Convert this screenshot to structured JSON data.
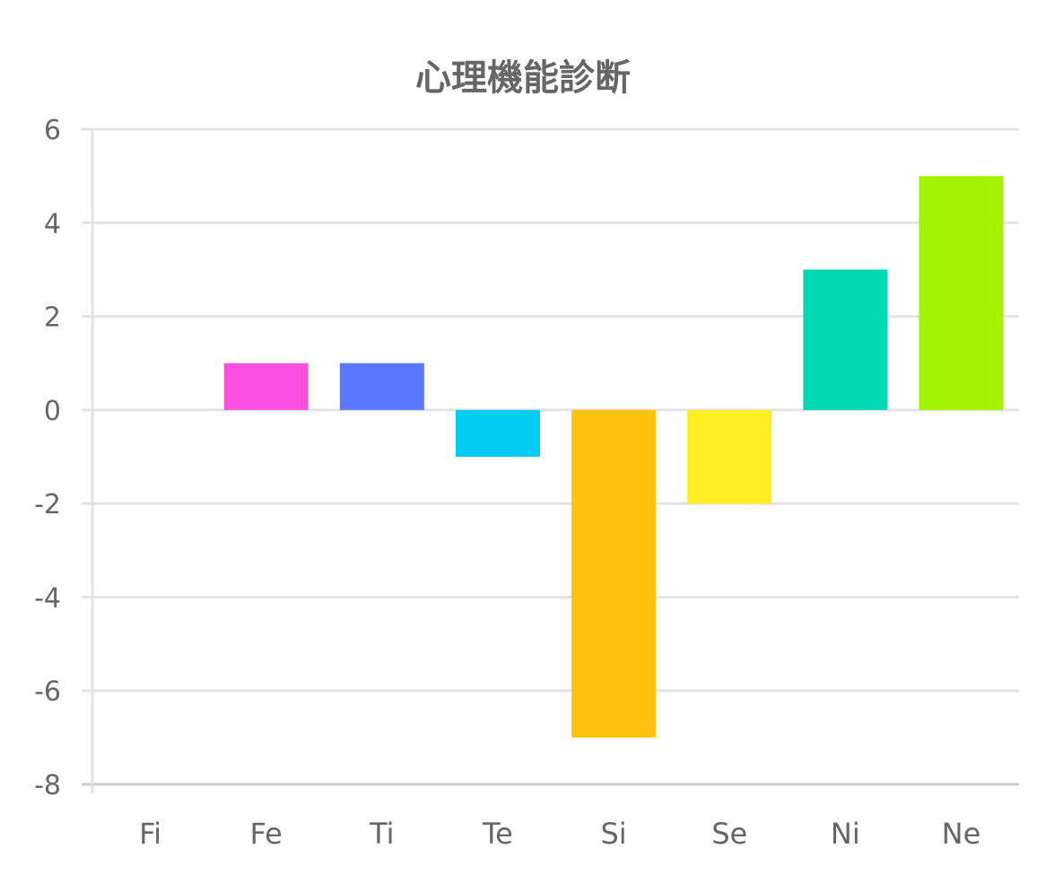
{
  "chart_data": {
    "type": "bar",
    "title": "心理機能診断",
    "xlabel": "",
    "ylabel": "",
    "categories": [
      "Fi",
      "Fe",
      "Ti",
      "Te",
      "Si",
      "Se",
      "Ni",
      "Ne"
    ],
    "values": [
      0,
      1,
      1,
      -1,
      -7,
      -2,
      3,
      5
    ],
    "colors": [
      "#ff4fe0",
      "#ff4fe0",
      "#5a77ff",
      "#00cbf2",
      "#ffc20f",
      "#ffee22",
      "#00d8b4",
      "#a3f200"
    ],
    "ylim": [
      -8,
      6
    ],
    "yticks": [
      6,
      4,
      2,
      0,
      -2,
      -4,
      -6,
      -8
    ],
    "grid": true,
    "legend": "none"
  }
}
